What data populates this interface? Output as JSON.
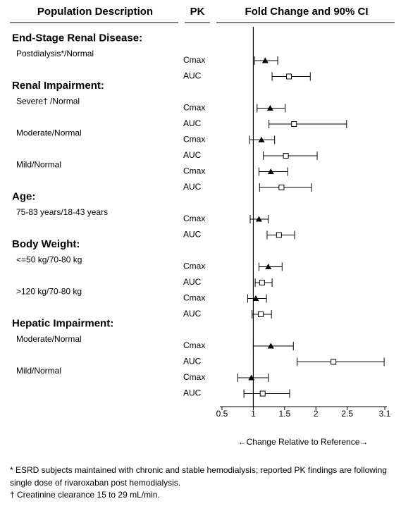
{
  "chart_data": {
    "type": "forest",
    "column_headers": [
      "Population Description",
      "PK",
      "Fold Change and 90% CI"
    ],
    "xlabel": "←Change Relative to Reference→",
    "xlim": [
      0.5,
      3.1
    ],
    "xticks": [
      0.5,
      1,
      1.5,
      2,
      2.5,
      3.1
    ],
    "reference_line": 1,
    "color": "#000000",
    "groups": [
      {
        "name": "End-Stage Renal Disease:",
        "subgroups": [
          {
            "label": "Postdialysis*/Normal",
            "rows": [
              {
                "pk": "Cmax",
                "marker": "filled-triangle",
                "value": 1.19,
                "low": 1.02,
                "high": 1.39
              },
              {
                "pk": "AUC",
                "marker": "open-square",
                "value": 1.57,
                "low": 1.3,
                "high": 1.91
              }
            ]
          }
        ]
      },
      {
        "name": "Renal Impairment:",
        "subgroups": [
          {
            "label": "Severe† /Normal",
            "rows": [
              {
                "pk": "Cmax",
                "marker": "filled-triangle",
                "value": 1.27,
                "low": 1.06,
                "high": 1.51
              },
              {
                "pk": "AUC",
                "marker": "open-square",
                "value": 1.65,
                "low": 1.25,
                "high": 2.49
              }
            ]
          },
          {
            "label": "Moderate/Normal",
            "rows": [
              {
                "pk": "Cmax",
                "marker": "filled-triangle",
                "value": 1.13,
                "low": 0.94,
                "high": 1.34
              },
              {
                "pk": "AUC",
                "marker": "open-square",
                "value": 1.52,
                "low": 1.16,
                "high": 2.02
              }
            ]
          },
          {
            "label": "Mild/Normal",
            "rows": [
              {
                "pk": "Cmax",
                "marker": "filled-triangle",
                "value": 1.28,
                "low": 1.09,
                "high": 1.55
              },
              {
                "pk": "AUC",
                "marker": "open-square",
                "value": 1.45,
                "low": 1.1,
                "high": 1.93
              }
            ]
          }
        ]
      },
      {
        "name": "Age:",
        "subgroups": [
          {
            "label": "75-83 years/18-43 years",
            "rows": [
              {
                "pk": "Cmax",
                "marker": "filled-triangle",
                "value": 1.09,
                "low": 0.95,
                "high": 1.24
              },
              {
                "pk": "AUC",
                "marker": "open-square",
                "value": 1.41,
                "low": 1.22,
                "high": 1.66
              }
            ]
          }
        ]
      },
      {
        "name": "Body Weight:",
        "subgroups": [
          {
            "label": "<=50 kg/70-80 kg",
            "rows": [
              {
                "pk": "Cmax",
                "marker": "filled-triangle",
                "value": 1.24,
                "low": 1.09,
                "high": 1.46
              },
              {
                "pk": "AUC",
                "marker": "open-square",
                "value": 1.14,
                "low": 1.03,
                "high": 1.3
              }
            ]
          },
          {
            "label": ">120 kg/70-80 kg",
            "rows": [
              {
                "pk": "Cmax",
                "marker": "filled-triangle",
                "value": 1.04,
                "low": 0.91,
                "high": 1.21
              },
              {
                "pk": "AUC",
                "marker": "open-square",
                "value": 1.12,
                "low": 0.98,
                "high": 1.29
              }
            ]
          }
        ]
      },
      {
        "name": "Hepatic Impairment:",
        "subgroups": [
          {
            "label": "Moderate/Normal",
            "rows": [
              {
                "pk": "Cmax",
                "marker": "filled-triangle",
                "value": 1.28,
                "low": 1.0,
                "high": 1.64
              },
              {
                "pk": "AUC",
                "marker": "open-square",
                "value": 2.28,
                "low": 1.7,
                "high": 3.09
              }
            ]
          },
          {
            "label": "Mild/Normal",
            "rows": [
              {
                "pk": "Cmax",
                "marker": "filled-triangle",
                "value": 0.97,
                "low": 0.75,
                "high": 1.24
              },
              {
                "pk": "AUC",
                "marker": "open-square",
                "value": 1.15,
                "low": 0.85,
                "high": 1.58
              }
            ]
          }
        ]
      }
    ]
  },
  "footnotes": [
    "* ESRD subjects maintained with chronic and stable hemodialysis; reported PK findings are following",
    "single dose of rivaroxaban post hemodialysis.",
    "† Creatinine clearance 15 to 29 mL/min."
  ]
}
